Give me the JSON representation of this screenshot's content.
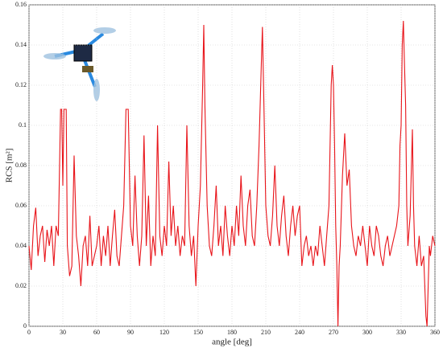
{
  "chart_data": {
    "type": "line",
    "x_label": "angle [deg]",
    "y_label": "RCS [m²]",
    "color": "#e8141a",
    "grid": true,
    "xlim": [
      0,
      360
    ],
    "ylim": [
      0,
      0.16
    ],
    "xticks": [
      0,
      30,
      60,
      90,
      120,
      150,
      180,
      210,
      240,
      270,
      300,
      330,
      360
    ],
    "yticks": [
      0,
      0.02,
      0.04,
      0.06,
      0.08,
      0.1,
      0.12,
      0.14,
      0.16
    ],
    "x": [
      0,
      2,
      4,
      6,
      8,
      10,
      12,
      14,
      16,
      18,
      20,
      22,
      24,
      26,
      28,
      29,
      30,
      31,
      33,
      34,
      36,
      38,
      40,
      42,
      44,
      46,
      48,
      50,
      52,
      54,
      56,
      58,
      60,
      62,
      64,
      66,
      68,
      70,
      72,
      74,
      76,
      78,
      80,
      82,
      84,
      86,
      88,
      90,
      92,
      94,
      96,
      98,
      100,
      102,
      104,
      106,
      108,
      110,
      112,
      114,
      116,
      118,
      120,
      122,
      124,
      126,
      128,
      130,
      132,
      134,
      136,
      138,
      140,
      142,
      144,
      146,
      148,
      150,
      152,
      154,
      155,
      156,
      158,
      160,
      162,
      164,
      166,
      168,
      170,
      172,
      174,
      176,
      178,
      180,
      182,
      184,
      186,
      188,
      190,
      192,
      194,
      196,
      198,
      200,
      202,
      204,
      206,
      207,
      208,
      210,
      212,
      214,
      216,
      218,
      220,
      222,
      224,
      226,
      228,
      230,
      232,
      234,
      236,
      238,
      240,
      242,
      244,
      246,
      248,
      250,
      252,
      254,
      256,
      258,
      260,
      262,
      264,
      266,
      268,
      269,
      270,
      271,
      272,
      273,
      274,
      275,
      276,
      278,
      280,
      282,
      284,
      286,
      288,
      290,
      292,
      294,
      296,
      298,
      300,
      302,
      304,
      306,
      308,
      310,
      312,
      314,
      316,
      318,
      320,
      322,
      324,
      326,
      328,
      329,
      330,
      331,
      332,
      333,
      334,
      335,
      336,
      338,
      340,
      341,
      342,
      344,
      346,
      348,
      350,
      352,
      353,
      354,
      355,
      356,
      358,
      360
    ],
    "values": [
      0.04,
      0.028,
      0.05,
      0.059,
      0.035,
      0.045,
      0.05,
      0.032,
      0.048,
      0.04,
      0.05,
      0.03,
      0.05,
      0.045,
      0.108,
      0.108,
      0.07,
      0.108,
      0.108,
      0.04,
      0.025,
      0.03,
      0.085,
      0.045,
      0.035,
      0.02,
      0.04,
      0.045,
      0.03,
      0.055,
      0.03,
      0.035,
      0.04,
      0.05,
      0.03,
      0.045,
      0.035,
      0.05,
      0.03,
      0.045,
      0.058,
      0.035,
      0.03,
      0.045,
      0.06,
      0.108,
      0.108,
      0.05,
      0.04,
      0.075,
      0.045,
      0.03,
      0.045,
      0.095,
      0.04,
      0.065,
      0.03,
      0.045,
      0.035,
      0.1,
      0.045,
      0.035,
      0.05,
      0.04,
      0.082,
      0.045,
      0.06,
      0.04,
      0.05,
      0.035,
      0.045,
      0.04,
      0.1,
      0.05,
      0.035,
      0.045,
      0.02,
      0.05,
      0.07,
      0.12,
      0.15,
      0.11,
      0.06,
      0.04,
      0.035,
      0.05,
      0.07,
      0.04,
      0.05,
      0.035,
      0.06,
      0.045,
      0.035,
      0.05,
      0.04,
      0.06,
      0.045,
      0.075,
      0.05,
      0.04,
      0.06,
      0.068,
      0.045,
      0.04,
      0.06,
      0.09,
      0.13,
      0.149,
      0.12,
      0.06,
      0.045,
      0.04,
      0.055,
      0.08,
      0.05,
      0.04,
      0.055,
      0.065,
      0.045,
      0.035,
      0.05,
      0.06,
      0.045,
      0.055,
      0.06,
      0.03,
      0.04,
      0.045,
      0.035,
      0.04,
      0.03,
      0.04,
      0.035,
      0.05,
      0.04,
      0.03,
      0.045,
      0.06,
      0.12,
      0.13,
      0.12,
      0.09,
      0.05,
      0.03,
      0,
      0.03,
      0.04,
      0.075,
      0.096,
      0.07,
      0.078,
      0.05,
      0.04,
      0.035,
      0.045,
      0.04,
      0.05,
      0.04,
      0.03,
      0.05,
      0.04,
      0.035,
      0.05,
      0.045,
      0.035,
      0.03,
      0.04,
      0.045,
      0.035,
      0.04,
      0.045,
      0.05,
      0.06,
      0.09,
      0.1,
      0.14,
      0.152,
      0.13,
      0.11,
      0.06,
      0.04,
      0.055,
      0.098,
      0.06,
      0.04,
      0.03,
      0.045,
      0.03,
      0.035,
      0.005,
      0,
      0.02,
      0.04,
      0.035,
      0.045,
      0.04
    ]
  }
}
